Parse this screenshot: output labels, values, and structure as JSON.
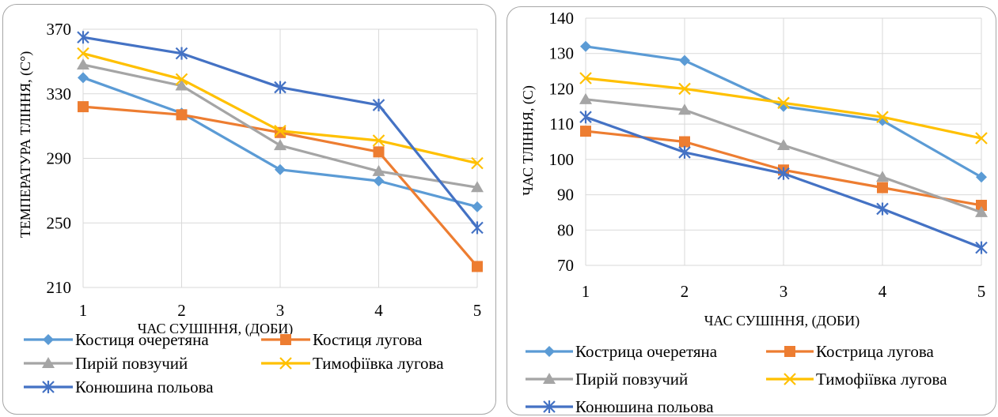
{
  "chart_data": [
    {
      "type": "line",
      "xlabel": "ЧАС СУШІННЯ, (ДОБИ)",
      "ylabel": "ТЕМПЕРАТУРА ТЛІННЯ, (С°)",
      "x": [
        1,
        2,
        3,
        4,
        5
      ],
      "ylim": [
        210,
        370
      ],
      "yticks": [
        210,
        250,
        290,
        330,
        370
      ],
      "grid": true,
      "legend_position": "bottom",
      "series": [
        {
          "name": "Костиця очеретяна",
          "values": [
            340,
            318,
            283,
            276,
            260
          ],
          "color": "#5b9bd5",
          "marker": "diamond"
        },
        {
          "name": "Костиця лугова",
          "values": [
            322,
            317,
            306,
            294,
            223
          ],
          "color": "#ed7d31",
          "marker": "square"
        },
        {
          "name": "Пирій повзучий",
          "values": [
            348,
            335,
            298,
            282,
            272
          ],
          "color": "#a5a5a5",
          "marker": "triangle"
        },
        {
          "name": "Тимофіївка лугова",
          "values": [
            355,
            339,
            307,
            301,
            287
          ],
          "color": "#ffc000",
          "marker": "x"
        },
        {
          "name": "Конюшина польова",
          "values": [
            365,
            355,
            334,
            323,
            247
          ],
          "color": "#4472c4",
          "marker": "star"
        }
      ]
    },
    {
      "type": "line",
      "xlabel": "ЧАС СУШІННЯ, (ДОБИ)",
      "ylabel": "ЧАС ТЛІННЯ, (С)",
      "x": [
        1,
        2,
        3,
        4,
        5
      ],
      "ylim": [
        70,
        140
      ],
      "yticks": [
        70,
        80,
        90,
        100,
        110,
        120,
        130,
        140
      ],
      "grid": true,
      "legend_position": "bottom",
      "series": [
        {
          "name": "Кострица очеретяна",
          "values": [
            132,
            128,
            115,
            111,
            95
          ],
          "color": "#5b9bd5",
          "marker": "diamond"
        },
        {
          "name": "Кострица лугова",
          "values": [
            108,
            105,
            97,
            92,
            87
          ],
          "color": "#ed7d31",
          "marker": "square"
        },
        {
          "name": "Пирій повзучий",
          "values": [
            117,
            114,
            104,
            95,
            85
          ],
          "color": "#a5a5a5",
          "marker": "triangle"
        },
        {
          "name": "Тимофіївка лугова",
          "values": [
            123,
            120,
            116,
            112,
            106
          ],
          "color": "#ffc000",
          "marker": "x"
        },
        {
          "name": "Конюшина польова",
          "values": [
            112,
            102,
            96,
            86,
            75
          ],
          "color": "#4472c4",
          "marker": "star"
        }
      ]
    }
  ]
}
